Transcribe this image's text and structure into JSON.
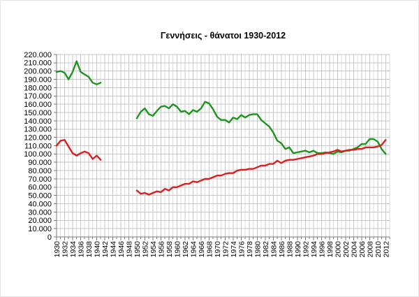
{
  "chart_data": {
    "type": "line",
    "title": "Γεννήσεις - θάνατοι 1930-2012",
    "xlabel": "",
    "ylabel": "",
    "legend": "none",
    "grid": true,
    "x_range": [
      1930,
      2013
    ],
    "ylim": [
      0,
      220000
    ],
    "y_tick_step": 10000,
    "x_tick_step": 2,
    "note_gap": "no data plotted for war years 1942-1949",
    "y_tick_labels": [
      "0",
      "10.000",
      "20.000",
      "30.000",
      "40.000",
      "50.000",
      "60.000",
      "70.000",
      "80.000",
      "90.000",
      "100.000",
      "110.000",
      "120.000",
      "130.000",
      "140.000",
      "150.000",
      "160.000",
      "170.000",
      "180.000",
      "190.000",
      "200.000",
      "210.000",
      "220.000"
    ],
    "x_tick_labels": [
      "1930",
      "1932",
      "1934",
      "1936",
      "1938",
      "1940",
      "1942",
      "1944",
      "1946",
      "1948",
      "1950",
      "1952",
      "1954",
      "1956",
      "1958",
      "1960",
      "1962",
      "1964",
      "1966",
      "1968",
      "1970",
      "1972",
      "1974",
      "1976",
      "1978",
      "1980",
      "1982",
      "1984",
      "1986",
      "1988",
      "1990",
      "1992",
      "1994",
      "1996",
      "1998",
      "2000",
      "2002",
      "2004",
      "2006",
      "2008",
      "2010",
      "2012"
    ],
    "years": [
      1930,
      1931,
      1932,
      1933,
      1934,
      1935,
      1936,
      1937,
      1938,
      1939,
      1940,
      1941,
      1942,
      1943,
      1944,
      1945,
      1946,
      1947,
      1948,
      1949,
      1950,
      1951,
      1952,
      1953,
      1954,
      1955,
      1956,
      1957,
      1958,
      1959,
      1960,
      1961,
      1962,
      1963,
      1964,
      1965,
      1966,
      1967,
      1968,
      1969,
      1970,
      1971,
      1972,
      1973,
      1974,
      1975,
      1976,
      1977,
      1978,
      1979,
      1980,
      1981,
      1982,
      1983,
      1984,
      1985,
      1986,
      1987,
      1988,
      1989,
      1990,
      1991,
      1992,
      1993,
      1994,
      1995,
      1996,
      1997,
      1998,
      1999,
      2000,
      2001,
      2002,
      2003,
      2004,
      2005,
      2006,
      2007,
      2008,
      2009,
      2010,
      2011,
      2012
    ],
    "series": [
      {
        "id": "births",
        "name": "Γεννήσεις",
        "color": "#1e941e",
        "values": [
          199000,
          200000,
          198000,
          190000,
          199000,
          212000,
          199000,
          196000,
          193000,
          186000,
          184000,
          186000,
          null,
          null,
          null,
          null,
          null,
          null,
          null,
          null,
          143000,
          151000,
          155000,
          148000,
          146000,
          152000,
          157000,
          158000,
          155000,
          160000,
          157000,
          151000,
          152000,
          148000,
          153000,
          151000,
          155000,
          163000,
          161000,
          154000,
          145000,
          141000,
          141000,
          138000,
          144000,
          142000,
          147000,
          144000,
          147000,
          148000,
          148000,
          141000,
          137000,
          133000,
          126000,
          116000,
          113000,
          106000,
          108000,
          101000,
          102000,
          103000,
          104000,
          102000,
          104000,
          101000,
          101000,
          102000,
          101000,
          100000,
          103000,
          102000,
          104000,
          104000,
          106000,
          108000,
          112000,
          112000,
          118000,
          118000,
          115000,
          106000,
          100000
        ]
      },
      {
        "id": "deaths",
        "name": "Θάνατοι",
        "color": "#dc1e1e",
        "values": [
          110000,
          116000,
          117000,
          109000,
          101000,
          98000,
          101000,
          103000,
          101000,
          94000,
          98000,
          93000,
          null,
          null,
          null,
          null,
          null,
          null,
          null,
          null,
          56000,
          52000,
          53000,
          51000,
          53000,
          55000,
          54000,
          58000,
          56000,
          60000,
          60000,
          62000,
          64000,
          64000,
          67000,
          66000,
          68000,
          70000,
          70000,
          72000,
          74000,
          74000,
          76000,
          77000,
          77000,
          80000,
          81000,
          81000,
          82000,
          82000,
          84000,
          86000,
          86000,
          88000,
          88000,
          92000,
          89000,
          92000,
          93000,
          93000,
          94000,
          95000,
          96000,
          97000,
          98000,
          100000,
          100000,
          101000,
          102000,
          103000,
          105000,
          103000,
          104000,
          105000,
          105000,
          106000,
          106000,
          108000,
          108000,
          108000,
          109000,
          111000,
          117000
        ]
      }
    ],
    "colors": {
      "grid_major": "#c6c6c6",
      "grid_minor": "#dedede",
      "axis": "#7a7a7a",
      "title": "#000000"
    }
  }
}
